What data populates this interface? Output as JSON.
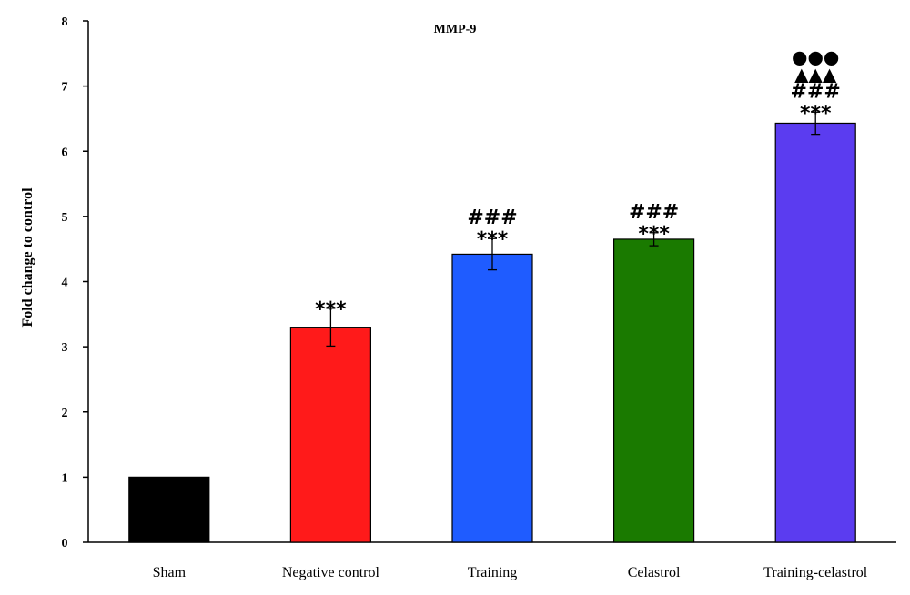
{
  "chart_data": {
    "type": "bar",
    "title": "MMP-9",
    "xlabel": "",
    "ylabel": "Fold change to control",
    "ylim": [
      0,
      8
    ],
    "yticks": [
      0,
      1,
      2,
      3,
      4,
      5,
      6,
      7,
      8
    ],
    "grid": false,
    "categories": [
      "Sham",
      "Negative control",
      "Training",
      "Celastrol",
      "Training-celastrol"
    ],
    "values": [
      1.0,
      3.3,
      4.42,
      4.65,
      6.43
    ],
    "errors": [
      0.0,
      0.29,
      0.24,
      0.1,
      0.17
    ],
    "colors": [
      "#000000",
      "#ff1a1a",
      "#1f5cff",
      "#1a7a00",
      "#5b3cf0"
    ],
    "annotations": [
      [],
      [
        "***"
      ],
      [
        "***",
        "###"
      ],
      [
        "***",
        "###"
      ],
      [
        "***",
        "###",
        "▲▲▲",
        "●●●"
      ]
    ]
  }
}
